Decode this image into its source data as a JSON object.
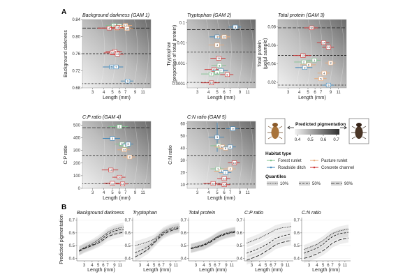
{
  "figure": {
    "panel_letters": [
      "A",
      "B"
    ]
  },
  "legend": {
    "pigmentation_title": "Predicted pigmentation",
    "pigmentation_ticks": [
      "0.4",
      "0.5",
      "0.6",
      "0.7"
    ],
    "habitat_title": "Habitat type",
    "habitats": [
      {
        "name": "Forest runlet",
        "color": "#7fc08e"
      },
      {
        "name": "Pasture runlet",
        "color": "#e8a978"
      },
      {
        "name": "Roadside ditch",
        "color": "#3f86b8"
      },
      {
        "name": "Concrete channel",
        "color": "#cc2f2f"
      }
    ],
    "quantiles_title": "Quantiles",
    "quantiles": [
      "10%",
      "50%",
      "90%"
    ]
  },
  "chart_data": [
    {
      "type": "scatter",
      "panel": "A",
      "title": "Background darkness (GAM 1)",
      "xlabel": "Length (mm)",
      "ylabel": "Background darkness",
      "xticks": [
        3,
        4,
        5,
        6,
        7,
        9,
        11
      ],
      "yticks": [
        0.68,
        0.72,
        0.76,
        0.8,
        0.84
      ],
      "ylim": [
        0.68,
        0.84
      ],
      "quantile_lines": [
        0.69,
        0.76,
        0.82
      ],
      "points": [
        {
          "label": "2",
          "x": 5.2,
          "y": 0.826,
          "xerr": 1.0,
          "habitat": "Forest runlet"
        },
        {
          "label": "1",
          "x": 6.0,
          "y": 0.825,
          "xerr": 1.2,
          "habitat": "Forest runlet"
        },
        {
          "label": "12",
          "x": 7.0,
          "y": 0.826,
          "xerr": 1.3,
          "habitat": "Pasture runlet"
        },
        {
          "label": "5",
          "x": 5.6,
          "y": 0.82,
          "xerr": 1.0,
          "habitat": "Pasture runlet"
        },
        {
          "label": "4",
          "x": 4.6,
          "y": 0.82,
          "xerr": 1.2,
          "habitat": "Concrete channel"
        },
        {
          "label": "14",
          "x": 5.7,
          "y": 0.821,
          "xerr": 1.0,
          "habitat": "Concrete channel"
        },
        {
          "label": "15",
          "x": 7.3,
          "y": 0.819,
          "xerr": 1.3,
          "habitat": "Pasture runlet"
        },
        {
          "label": "11",
          "x": 5.3,
          "y": 0.765,
          "xerr": 1.1,
          "habitat": "Concrete channel"
        },
        {
          "label": "10",
          "x": 5.0,
          "y": 0.762,
          "xerr": 1.0,
          "habitat": "Concrete channel"
        },
        {
          "label": "13",
          "x": 5.7,
          "y": 0.759,
          "xerr": 1.0,
          "habitat": "Concrete channel"
        },
        {
          "label": "3",
          "x": 4.9,
          "y": 0.729,
          "xerr": 1.0,
          "habitat": "Roadside ditch"
        },
        {
          "label": "7",
          "x": 5.5,
          "y": 0.729,
          "xerr": 1.1,
          "habitat": "Roadside ditch"
        },
        {
          "label": "9",
          "x": 7.4,
          "y": 0.696,
          "xerr": 1.2,
          "habitat": "Roadside ditch"
        }
      ]
    },
    {
      "type": "scatter",
      "panel": "A",
      "title": "Tryptophan (GAM 2)",
      "xlabel": "Length (mm)",
      "ylabel": "Tryptophan (proportion of total protein)",
      "xticks": [
        3,
        4,
        5,
        6,
        7,
        9,
        11
      ],
      "yticks": [
        "0.0001",
        "0.001",
        "0.01",
        "0.1"
      ],
      "ylim_log10": [
        -4.2,
        -0.85
      ],
      "quantile_lines_log10": [
        -3.93,
        -2.45,
        -1.35
      ],
      "points": [
        {
          "label": "9",
          "x": 8.0,
          "y": -1.22,
          "xerr": 1.3,
          "habitat": "Roadside ditch"
        },
        {
          "label": "3",
          "x": 5.0,
          "y": -1.7,
          "xerr": 0.9,
          "habitat": "Roadside ditch"
        },
        {
          "label": "12",
          "x": 6.0,
          "y": -1.7,
          "xerr": 1.0,
          "habitat": "Pasture runlet"
        },
        {
          "label": "4",
          "x": 5.0,
          "y": -2.1,
          "xerr": 1.0,
          "habitat": "Pasture runlet"
        },
        {
          "label": "11",
          "x": 5.2,
          "y": -2.75,
          "xerr": 1.0,
          "habitat": "Concrete channel"
        },
        {
          "label": "5",
          "x": 5.3,
          "y": -3.1,
          "xerr": 1.0,
          "habitat": "Forest runlet"
        },
        {
          "label": "13",
          "x": 4.6,
          "y": -3.3,
          "xerr": 1.0,
          "habitat": "Concrete channel"
        },
        {
          "label": "7",
          "x": 5.5,
          "y": -3.35,
          "xerr": 1.1,
          "habitat": "Roadside ditch"
        },
        {
          "label": "1",
          "x": 5.0,
          "y": -3.45,
          "xerr": 1.0,
          "habitat": "Forest runlet"
        },
        {
          "label": "2",
          "x": 4.3,
          "y": -3.52,
          "xerr": 1.0,
          "habitat": "Forest runlet"
        },
        {
          "label": "8",
          "x": 6.5,
          "y": -3.55,
          "xerr": 1.1,
          "habitat": "Concrete channel"
        },
        {
          "label": "10",
          "x": 4.3,
          "y": -3.95,
          "xerr": 1.0,
          "habitat": "Concrete channel"
        }
      ]
    },
    {
      "type": "scatter",
      "panel": "A",
      "title": "Total protein (GAM 3)",
      "xlabel": "Length (mm)",
      "ylabel": "Total protein (µg/µl sample)",
      "xticks": [
        3,
        4,
        5,
        6,
        7,
        9,
        11
      ],
      "yticks": [
        0.02,
        0.04,
        0.06,
        0.08
      ],
      "ylim": [
        0.014,
        0.088
      ],
      "quantile_lines": [
        0.017,
        0.049,
        0.079
      ],
      "points": [
        {
          "label": "10",
          "x": 5.5,
          "y": 0.079,
          "xerr": 1.0,
          "habitat": "Concrete channel"
        },
        {
          "label": "14",
          "x": 7.5,
          "y": 0.063,
          "xerr": 1.2,
          "habitat": "Concrete channel"
        },
        {
          "label": "11",
          "x": 8.5,
          "y": 0.058,
          "xerr": 1.3,
          "habitat": "Concrete channel"
        },
        {
          "label": "13",
          "x": 4.4,
          "y": 0.049,
          "xerr": 1.0,
          "habitat": "Concrete channel"
        },
        {
          "label": "1",
          "x": 5.9,
          "y": 0.044,
          "xerr": 1.0,
          "habitat": "Forest runlet"
        },
        {
          "label": "2",
          "x": 4.5,
          "y": 0.042,
          "xerr": 1.0,
          "habitat": "Forest runlet"
        },
        {
          "label": "6",
          "x": 5.1,
          "y": 0.039,
          "xerr": 1.0,
          "habitat": "Pasture runlet"
        },
        {
          "label": "3",
          "x": 4.6,
          "y": 0.036,
          "xerr": 1.0,
          "habitat": "Roadside ditch"
        },
        {
          "label": "4",
          "x": 7.6,
          "y": 0.03,
          "xerr": 1.2,
          "habitat": "Pasture runlet"
        },
        {
          "label": "8",
          "x": 9.0,
          "y": 0.041,
          "xerr": 1.2,
          "habitat": "Pasture runlet"
        },
        {
          "label": "5",
          "x": 7.0,
          "y": 0.024,
          "xerr": 1.1,
          "habitat": "Pasture runlet"
        },
        {
          "label": "9",
          "x": 8.5,
          "y": 0.017,
          "xerr": 1.3,
          "habitat": "Roadside ditch"
        }
      ]
    },
    {
      "type": "scatter",
      "panel": "A",
      "title": "C:P ratio (GAM 4)",
      "xlabel": "Length (mm)",
      "ylabel": "C:P ratio",
      "xticks": [
        3,
        4,
        5,
        6,
        7,
        9,
        11
      ],
      "yticks": [
        0,
        100,
        200,
        300,
        400,
        500
      ],
      "ylim": [
        0,
        530
      ],
      "quantile_lines": [
        35,
        260,
        480
      ],
      "points": [
        {
          "label": "2",
          "x": 6.0,
          "y": 488,
          "xerr": 1.5,
          "habitat": "Forest runlet"
        },
        {
          "label": "3",
          "x": 5.0,
          "y": 395,
          "xerr": 1.1,
          "habitat": "Roadside ditch"
        },
        {
          "label": "5",
          "x": 6.4,
          "y": 350,
          "xerr": 1.1,
          "habitat": "Forest runlet"
        },
        {
          "label": "1",
          "x": 7.0,
          "y": 340,
          "xerr": 1.1,
          "habitat": "Forest runlet"
        },
        {
          "label": "9",
          "x": 7.5,
          "y": 350,
          "xerr": 1.1,
          "habitat": "Roadside ditch"
        },
        {
          "label": "12",
          "x": 6.8,
          "y": 305,
          "xerr": 1.1,
          "habitat": "Pasture runlet"
        },
        {
          "label": "8",
          "x": 7.8,
          "y": 248,
          "xerr": 1.2,
          "habitat": "Pasture runlet"
        },
        {
          "label": "13",
          "x": 4.8,
          "y": 145,
          "xerr": 1.0,
          "habitat": "Concrete channel"
        },
        {
          "label": "10",
          "x": 6.0,
          "y": 88,
          "xerr": 1.0,
          "habitat": "Concrete channel"
        },
        {
          "label": "11",
          "x": 5.0,
          "y": 40,
          "xerr": 1.0,
          "habitat": "Concrete channel"
        },
        {
          "label": "14",
          "x": 6.5,
          "y": 35,
          "xerr": 1.0,
          "habitat": "Concrete channel"
        }
      ]
    },
    {
      "type": "scatter",
      "panel": "A",
      "title": "C:N ratio (GAM 5)",
      "xlabel": "Length (mm)",
      "ylabel": "C:N ratio",
      "xticks": [
        3,
        4,
        5,
        6,
        7,
        9,
        11
      ],
      "yticks": [
        10,
        20,
        30,
        40,
        50,
        60
      ],
      "ylim": [
        7,
        62
      ],
      "quantile_lines": [
        10.5,
        34,
        56
      ],
      "points": [
        {
          "label": "3",
          "x": 5.0,
          "y": 49,
          "xerr": 1.0,
          "yerr": 12,
          "habitat": "Roadside ditch"
        },
        {
          "label": "9",
          "x": 7.5,
          "y": 56,
          "xerr": 1.2,
          "habitat": "Roadside ditch"
        },
        {
          "label": "2",
          "x": 5.2,
          "y": 42,
          "xerr": 1.0,
          "habitat": "Forest runlet"
        },
        {
          "label": "12",
          "x": 5.7,
          "y": 41,
          "xerr": 1.1,
          "habitat": "Pasture runlet"
        },
        {
          "label": "6",
          "x": 6.2,
          "y": 40,
          "xerr": 1.0,
          "habitat": "Pasture runlet"
        },
        {
          "label": "8",
          "x": 7.0,
          "y": 41,
          "xerr": 1.1,
          "habitat": "Roadside ditch"
        },
        {
          "label": "10",
          "x": 7.8,
          "y": 28,
          "xerr": 1.2,
          "habitat": "Concrete channel"
        },
        {
          "label": "1",
          "x": 5.1,
          "y": 23,
          "xerr": 0.9,
          "habitat": "Forest runlet"
        },
        {
          "label": "5",
          "x": 5.6,
          "y": 21,
          "xerr": 1.0,
          "habitat": "Pasture runlet"
        },
        {
          "label": "4",
          "x": 7.0,
          "y": 23,
          "xerr": 1.1,
          "habitat": "Pasture runlet"
        },
        {
          "label": "7",
          "x": 6.2,
          "y": 20,
          "xerr": 1.0,
          "habitat": "Roadside ditch"
        },
        {
          "label": "11",
          "x": 6.0,
          "y": 15,
          "xerr": 1.0,
          "habitat": "Concrete channel"
        },
        {
          "label": "13",
          "x": 4.5,
          "y": 11,
          "xerr": 1.0,
          "habitat": "Concrete channel"
        },
        {
          "label": "14",
          "x": 6.0,
          "y": 10,
          "xerr": 1.0,
          "habitat": "Concrete channel"
        }
      ]
    },
    {
      "type": "line",
      "panel": "B",
      "title": "Background darkness",
      "xlabel": "Length (mm)",
      "ylabel": "Predicted pigmentation",
      "xticks": [
        3,
        4,
        5,
        6,
        7,
        9,
        11
      ],
      "yticks": [
        0.4,
        0.5,
        0.6,
        0.7
      ],
      "ylim": [
        0.38,
        0.72
      ],
      "x": [
        2.5,
        3,
        4,
        5,
        6,
        7,
        9,
        11,
        12.5
      ],
      "series": [
        {
          "name": "10%",
          "values": [
            0.46,
            0.485,
            0.515,
            0.545,
            0.575,
            0.605,
            0.63,
            0.64,
            0.645
          ]
        },
        {
          "name": "50%",
          "values": [
            0.46,
            0.48,
            0.505,
            0.53,
            0.56,
            0.59,
            0.615,
            0.625,
            0.625
          ]
        },
        {
          "name": "90%",
          "values": [
            0.455,
            0.475,
            0.5,
            0.52,
            0.545,
            0.57,
            0.59,
            0.6,
            0.605
          ]
        }
      ]
    },
    {
      "type": "line",
      "panel": "B",
      "title": "Tryptophan",
      "xlabel": "Length (mm)",
      "ylabel": "",
      "xticks": [
        3,
        4,
        5,
        6,
        7,
        9,
        11
      ],
      "yticks": [
        0.4,
        0.5,
        0.6,
        0.7
      ],
      "ylim": [
        0.38,
        0.72
      ],
      "x": [
        2.5,
        3,
        4,
        5,
        6,
        7,
        9,
        11,
        12.5
      ],
      "series": [
        {
          "name": "10%",
          "values": [
            0.5,
            0.51,
            0.53,
            0.55,
            0.58,
            0.61,
            0.635,
            0.645,
            0.65
          ]
        },
        {
          "name": "50%",
          "values": [
            0.445,
            0.46,
            0.49,
            0.53,
            0.57,
            0.6,
            0.625,
            0.635,
            0.64
          ]
        },
        {
          "name": "90%",
          "values": [
            0.41,
            0.43,
            0.47,
            0.52,
            0.56,
            0.59,
            0.615,
            0.63,
            0.635
          ]
        }
      ]
    },
    {
      "type": "line",
      "panel": "B",
      "title": "Total protein",
      "xlabel": "Length (mm)",
      "ylabel": "",
      "xticks": [
        3,
        4,
        5,
        6,
        7,
        9,
        11
      ],
      "yticks": [
        0.4,
        0.5,
        0.6,
        0.7
      ],
      "ylim": [
        0.38,
        0.72
      ],
      "x": [
        2.5,
        3,
        4,
        5,
        6,
        7,
        9,
        11,
        12.5
      ],
      "series": [
        {
          "name": "10%",
          "values": [
            0.48,
            0.49,
            0.51,
            0.535,
            0.56,
            0.58,
            0.6,
            0.61,
            0.615
          ]
        },
        {
          "name": "50%",
          "values": [
            0.48,
            0.49,
            0.505,
            0.53,
            0.555,
            0.575,
            0.595,
            0.605,
            0.61
          ]
        },
        {
          "name": "90%",
          "values": [
            0.475,
            0.485,
            0.5,
            0.525,
            0.55,
            0.57,
            0.59,
            0.6,
            0.605
          ]
        }
      ]
    },
    {
      "type": "line",
      "panel": "B",
      "title": "C:P ratio",
      "xlabel": "Length (mm)",
      "ylabel": "",
      "xticks": [
        3,
        4,
        5,
        6,
        7,
        9,
        11
      ],
      "yticks": [
        0.4,
        0.5,
        0.6,
        0.7
      ],
      "ylim": [
        0.38,
        0.72
      ],
      "x": [
        2.5,
        3,
        4,
        5,
        6,
        7,
        9,
        11,
        12.5
      ],
      "series": [
        {
          "name": "10%",
          "values": [
            0.52,
            0.535,
            0.56,
            0.585,
            0.605,
            0.625,
            0.64,
            0.645,
            0.65
          ]
        },
        {
          "name": "50%",
          "values": [
            0.44,
            0.455,
            0.48,
            0.505,
            0.53,
            0.555,
            0.575,
            0.585,
            0.59
          ]
        },
        {
          "name": "90%",
          "values": [
            0.385,
            0.4,
            0.425,
            0.455,
            0.48,
            0.505,
            0.525,
            0.535,
            0.54
          ]
        }
      ]
    },
    {
      "type": "line",
      "panel": "B",
      "title": "C:N ratio",
      "xlabel": "Length (mm)",
      "ylabel": "",
      "xticks": [
        3,
        4,
        5,
        6,
        7,
        9,
        11
      ],
      "yticks": [
        0.4,
        0.5,
        0.6,
        0.7
      ],
      "ylim": [
        0.38,
        0.72
      ],
      "x": [
        2.5,
        3,
        4,
        5,
        6,
        7,
        9,
        11,
        12.5
      ],
      "series": [
        {
          "name": "10%",
          "values": [
            0.47,
            0.485,
            0.51,
            0.54,
            0.57,
            0.595,
            0.615,
            0.625,
            0.63
          ]
        },
        {
          "name": "50%",
          "values": [
            0.44,
            0.455,
            0.48,
            0.51,
            0.545,
            0.57,
            0.595,
            0.6,
            0.605
          ]
        },
        {
          "name": "90%",
          "values": [
            0.4,
            0.41,
            0.435,
            0.46,
            0.49,
            0.52,
            0.545,
            0.555,
            0.56
          ]
        }
      ]
    }
  ]
}
